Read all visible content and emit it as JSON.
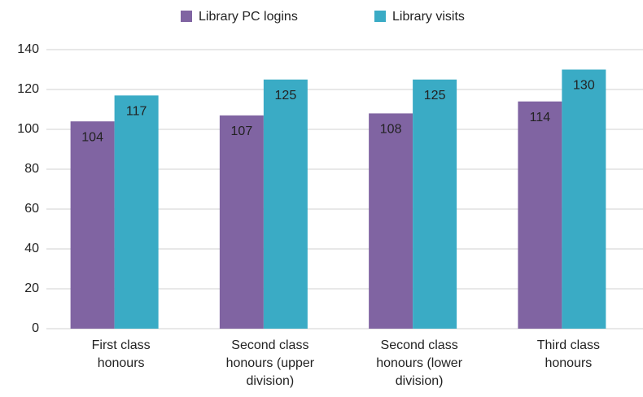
{
  "chart_data": {
    "type": "bar",
    "categories": [
      "First class honours",
      "Second class honours (upper division)",
      "Second class honours (lower division)",
      "Third class honours"
    ],
    "series": [
      {
        "name": "Library PC logins",
        "color": "#8064a2",
        "values": [
          104,
          107,
          108,
          114
        ]
      },
      {
        "name": "Library visits",
        "color": "#3aabc5",
        "values": [
          117,
          125,
          125,
          130
        ]
      }
    ],
    "ylim": [
      0,
      140
    ],
    "yticks": [
      0,
      20,
      40,
      60,
      80,
      100,
      120,
      140
    ],
    "grid": true,
    "legend": "top"
  }
}
